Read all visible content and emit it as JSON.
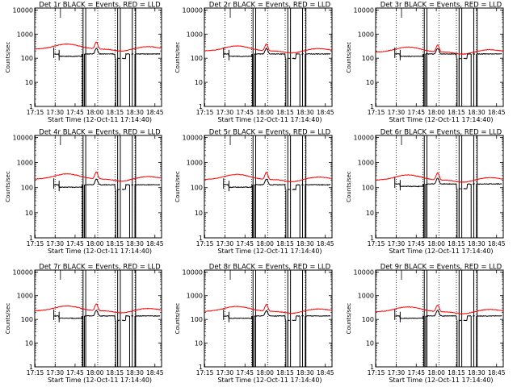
{
  "common": {
    "ylabel": "Counts/sec",
    "xlabel": "Start Time (12-Oct-11 17:14:40)",
    "xticks": [
      "17:15",
      "17:30",
      "17:45",
      "18:00",
      "18:15",
      "18:30",
      "18:45"
    ],
    "yticks": [
      "1",
      "10",
      "100",
      "1000",
      "10000"
    ],
    "events_color": "#000000",
    "lld_color": "#ff0000"
  },
  "chart_data": [
    {
      "type": "line",
      "title": "Det 1r BLACK = Events, RED = LLD",
      "xlabel": "Start Time (12-Oct-11 17:14:40)",
      "ylabel": "Counts/sec",
      "yscale": "log",
      "ylim": [
        1,
        12000
      ],
      "series": [
        {
          "name": "Events",
          "color": "#000000",
          "base": 150
        },
        {
          "name": "LLD",
          "color": "#ff0000",
          "base": 240
        }
      ]
    },
    {
      "type": "line",
      "title": "Det 2r BLACK = Events, RED = LLD",
      "xlabel": "Start Time (12-Oct-11 17:14:40)",
      "ylabel": "Counts/sec",
      "yscale": "log",
      "ylim": [
        1,
        12000
      ],
      "series": [
        {
          "name": "Events",
          "color": "#000000",
          "base": 150
        },
        {
          "name": "LLD",
          "color": "#ff0000",
          "base": 200
        }
      ]
    },
    {
      "type": "line",
      "title": "Det 3r BLACK = Events, RED = LLD",
      "xlabel": "Start Time (12-Oct-11 17:14:40)",
      "ylabel": "Counts/sec",
      "yscale": "log",
      "ylim": [
        1,
        12000
      ],
      "series": [
        {
          "name": "Events",
          "color": "#000000",
          "base": 150
        },
        {
          "name": "LLD",
          "color": "#ff0000",
          "base": 180
        }
      ]
    },
    {
      "type": "line",
      "title": "Det 4r BLACK = Events, RED = LLD",
      "xlabel": "Start Time (12-Oct-11 17:14:40)",
      "ylabel": "Counts/sec",
      "yscale": "log",
      "ylim": [
        1,
        12000
      ],
      "series": [
        {
          "name": "Events",
          "color": "#000000",
          "base": 130
        },
        {
          "name": "LLD",
          "color": "#ff0000",
          "base": 220
        }
      ]
    },
    {
      "type": "line",
      "title": "Det 5r BLACK = Events, RED = LLD",
      "xlabel": "Start Time (12-Oct-11 17:14:40)",
      "ylabel": "Counts/sec",
      "yscale": "log",
      "ylim": [
        1,
        12000
      ],
      "series": [
        {
          "name": "Events",
          "color": "#000000",
          "base": 130
        },
        {
          "name": "LLD",
          "color": "#ff0000",
          "base": 210
        }
      ]
    },
    {
      "type": "line",
      "title": "Det 6r BLACK = Events, RED = LLD",
      "xlabel": "Start Time (12-Oct-11 17:14:40)",
      "ylabel": "Counts/sec",
      "yscale": "log",
      "ylim": [
        1,
        12000
      ],
      "series": [
        {
          "name": "Events",
          "color": "#000000",
          "base": 140
        },
        {
          "name": "LLD",
          "color": "#ff0000",
          "base": 200
        }
      ]
    },
    {
      "type": "line",
      "title": "Det 7r BLACK = Events, RED = LLD",
      "xlabel": "Start Time (12-Oct-11 17:14:40)",
      "ylabel": "Counts/sec",
      "yscale": "log",
      "ylim": [
        1,
        12000
      ],
      "series": [
        {
          "name": "Events",
          "color": "#000000",
          "base": 140
        },
        {
          "name": "LLD",
          "color": "#ff0000",
          "base": 230
        }
      ]
    },
    {
      "type": "line",
      "title": "Det 8r BLACK = Events, RED = LLD",
      "xlabel": "Start Time (12-Oct-11 17:14:40)",
      "ylabel": "Counts/sec",
      "yscale": "log",
      "ylim": [
        1,
        12000
      ],
      "series": [
        {
          "name": "Events",
          "color": "#000000",
          "base": 140
        },
        {
          "name": "LLD",
          "color": "#ff0000",
          "base": 220
        }
      ]
    },
    {
      "type": "line",
      "title": "Det 9r BLACK = Events, RED = LLD",
      "xlabel": "Start Time (12-Oct-11 17:14:40)",
      "ylabel": "Counts/sec",
      "yscale": "log",
      "ylim": [
        1,
        12000
      ],
      "series": [
        {
          "name": "Events",
          "color": "#000000",
          "base": 140
        },
        {
          "name": "LLD",
          "color": "#ff0000",
          "base": 210
        }
      ]
    }
  ]
}
